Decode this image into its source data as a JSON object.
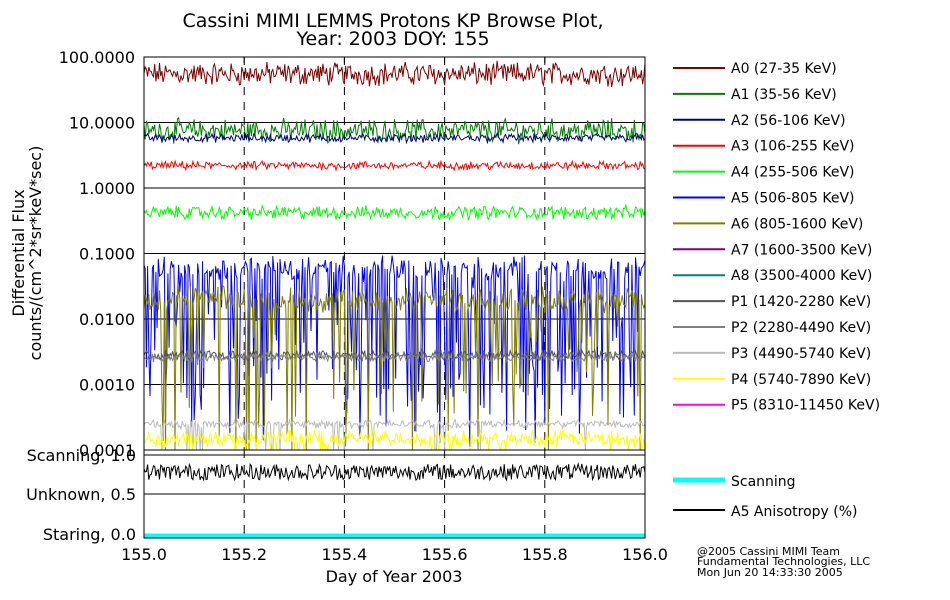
{
  "chart_data": {
    "type": "line",
    "title": [
      "Cassini MIMI LEMMS Protons KP Browse Plot,",
      "Year: 2003 DOY: 155"
    ],
    "xlabel": "Day of Year 2003",
    "ylabel": [
      "Differential Flux",
      "counts/(cm^2*sr*keV*sec)"
    ],
    "x_range": [
      155.0,
      156.0
    ],
    "x_ticks": [
      "155.0",
      "155.2",
      "155.4",
      "155.6",
      "155.8",
      "156.0"
    ],
    "x_tick_values": [
      155.0,
      155.2,
      155.4,
      155.6,
      155.8,
      156.0
    ],
    "y_scale": "log",
    "ylim": [
      0.0001,
      100
    ],
    "y_ticks": [
      "100.0000",
      "10.0000",
      "1.0000",
      "0.1000",
      "0.0100",
      "0.0010",
      "0.0001"
    ],
    "y_tick_values": [
      100,
      10,
      1,
      0.1,
      0.01,
      0.001,
      0.0001
    ],
    "grid": true,
    "series": [
      {
        "name": "A0 (27-35 KeV)",
        "color": "#7f0000",
        "level": 55,
        "spread": 0.14,
        "spikes": 0.0
      },
      {
        "name": "A1 (35-56 KeV)",
        "color": "#007f00",
        "level": 7.5,
        "spread": 0.14,
        "spikes": 0.0
      },
      {
        "name": "A2 (56-106 KeV)",
        "color": "#00007f",
        "level": 5.8,
        "spread": 0.05,
        "spikes": 0.0
      },
      {
        "name": "A3 (106-255 KeV)",
        "color": "#ff0000",
        "level": 2.2,
        "spread": 0.05,
        "spikes": 0.0
      },
      {
        "name": "A4 (255-506 KeV)",
        "color": "#00ff00",
        "level": 0.42,
        "spread": 0.08,
        "spikes": 0.0
      },
      {
        "name": "A5 (506-805 KeV)",
        "color": "#0000ff",
        "level": 0.06,
        "spread": 0.15,
        "spikes": 0.35
      },
      {
        "name": "A6 (805-1600 KeV)",
        "color": "#7f7f00",
        "level": 0.02,
        "spread": 0.15,
        "spikes": 0.2
      },
      {
        "name": "A7 (1600-3500 KeV)",
        "color": "#7f007f",
        "level": 0,
        "spread": 0,
        "spikes": 0
      },
      {
        "name": "A8 (3500-4000 KeV)",
        "color": "#007f7f",
        "level": 0,
        "spread": 0,
        "spikes": 0
      },
      {
        "name": "P1 (1420-2280 KeV)",
        "color": "#555555",
        "level": 0.0028,
        "spread": 0.06,
        "spikes": 0.0
      },
      {
        "name": "P2 (2280-4490 KeV)",
        "color": "#7f7f7f",
        "level": 0.0026,
        "spread": 0.05,
        "spikes": 0.0
      },
      {
        "name": "P3 (4490-5740 KeV)",
        "color": "#bbbbbb",
        "level": 0.00025,
        "spread": 0.05,
        "spikes": 0.05
      },
      {
        "name": "P4 (5740-7890 KeV)",
        "color": "#ffff00",
        "level": 0.00015,
        "spread": 0.1,
        "spikes": 0.05
      },
      {
        "name": "P5 (8310-11450 KeV)",
        "color": "#ff00ff",
        "level": 0,
        "spread": 0,
        "spikes": 0
      }
    ],
    "lower_panel": {
      "y_labels": [
        "Scanning, 1.0",
        "Unknown, 0.5",
        "Staring, 0.0"
      ],
      "y_values": [
        1.0,
        0.5,
        0.0
      ],
      "series": [
        {
          "name": "Scanning",
          "color": "#00ffff",
          "value": 0.0
        },
        {
          "name": "A5 Anisotropy (%)",
          "color": "#000000",
          "value": 0.85
        }
      ]
    }
  },
  "footer": {
    "line1": "@2005 Cassini MIMI Team",
    "line2": "Fundamental Technologies, LLC",
    "line3": "Mon Jun 20 14:33:30 2005"
  }
}
